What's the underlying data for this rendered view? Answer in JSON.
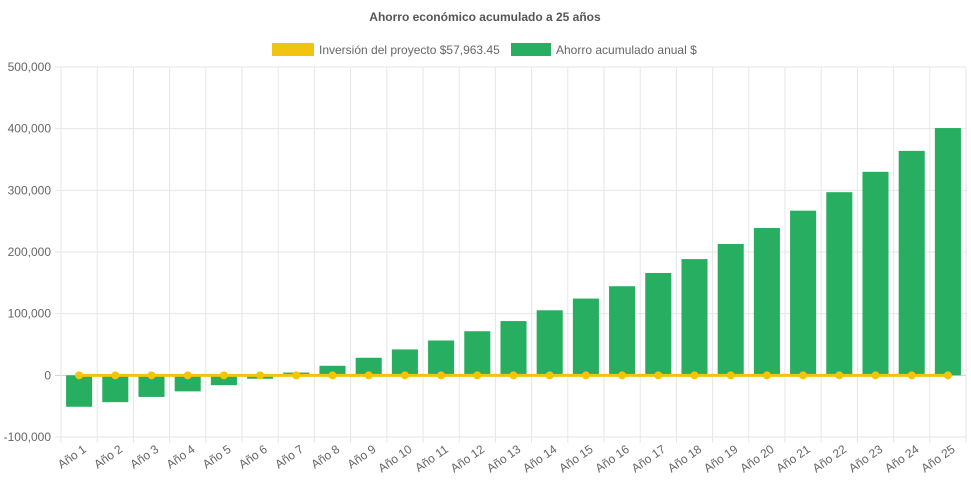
{
  "chart_data": {
    "type": "bar",
    "title": "Ahorro económico acumulado a 25 años",
    "categories": [
      "Año 1",
      "Año 2",
      "Año 3",
      "Año 4",
      "Año 5",
      "Año 6",
      "Año 7",
      "Año 8",
      "Año 9",
      "Año 10",
      "Año 11",
      "Año 12",
      "Año 13",
      "Año 14",
      "Año 15",
      "Año 16",
      "Año 17",
      "Año 18",
      "Año 19",
      "Año 20",
      "Año 21",
      "Año 22",
      "Año 23",
      "Año 24",
      "Año 25"
    ],
    "series": [
      {
        "name": "Inversión del proyecto $57,963.45",
        "type": "line",
        "color": "#f1c40f",
        "values": [
          0,
          0,
          0,
          0,
          0,
          0,
          0,
          0,
          0,
          0,
          0,
          0,
          0,
          0,
          0,
          0,
          0,
          0,
          0,
          0,
          0,
          0,
          0,
          0,
          0
        ]
      },
      {
        "name": "Ahorro acumulado anual $",
        "type": "bar",
        "color": "#27ae60",
        "values": [
          -51000,
          -43500,
          -35000,
          -26000,
          -16000,
          -5500,
          4500,
          15500,
          28500,
          42000,
          56500,
          71500,
          88000,
          105500,
          124500,
          144500,
          166000,
          188500,
          213000,
          239000,
          267000,
          297000,
          330000,
          364000,
          401000
        ]
      }
    ],
    "ylim": [
      -100000,
      500000
    ],
    "yticks": [
      "500,000",
      "400,000",
      "300,000",
      "200,000",
      "100,000",
      "0",
      "-100,000"
    ],
    "ytick_values": [
      500000,
      400000,
      300000,
      200000,
      100000,
      0,
      -100000
    ],
    "grid": true,
    "legend_position": "top"
  }
}
